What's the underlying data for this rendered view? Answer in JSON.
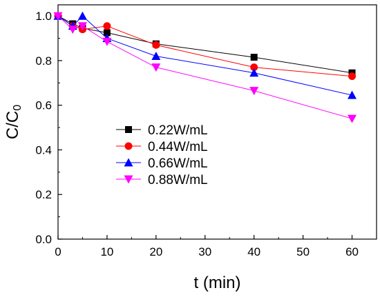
{
  "chart_data": {
    "type": "line",
    "xlabel": "t (min)",
    "ylabel": "C/C0",
    "xlim": [
      0,
      65
    ],
    "ylim": [
      0,
      1.05
    ],
    "xticks": [
      0,
      10,
      20,
      30,
      40,
      50,
      60
    ],
    "yticks": [
      0.0,
      0.2,
      0.4,
      0.6,
      0.8,
      1.0
    ],
    "xtick_labels": [
      "0",
      "10",
      "20",
      "30",
      "40",
      "50",
      "60"
    ],
    "ytick_labels": [
      "0.0",
      "0.2",
      "0.4",
      "0.6",
      "0.8",
      "1.0"
    ],
    "grid": false,
    "legend_position": "center",
    "x": [
      0,
      3,
      5,
      10,
      20,
      40,
      60
    ],
    "series": [
      {
        "name": "0.22W/mL",
        "marker": "square",
        "color": "#000000",
        "values": [
          1.0,
          0.965,
          0.945,
          0.925,
          0.875,
          0.815,
          0.745
        ]
      },
      {
        "name": "0.44W/mL",
        "marker": "circle",
        "color": "#ff0000",
        "values": [
          1.0,
          0.955,
          0.94,
          0.955,
          0.87,
          0.77,
          0.73
        ]
      },
      {
        "name": "0.66W/mL",
        "marker": "triangle-up",
        "color": "#0000ff",
        "values": [
          1.0,
          0.955,
          1.0,
          0.9,
          0.82,
          0.745,
          0.645
        ]
      },
      {
        "name": "0.88W/mL",
        "marker": "triangle-down",
        "color": "#ff00ff",
        "values": [
          1.0,
          0.94,
          0.955,
          0.885,
          0.77,
          0.665,
          0.54
        ]
      }
    ]
  }
}
